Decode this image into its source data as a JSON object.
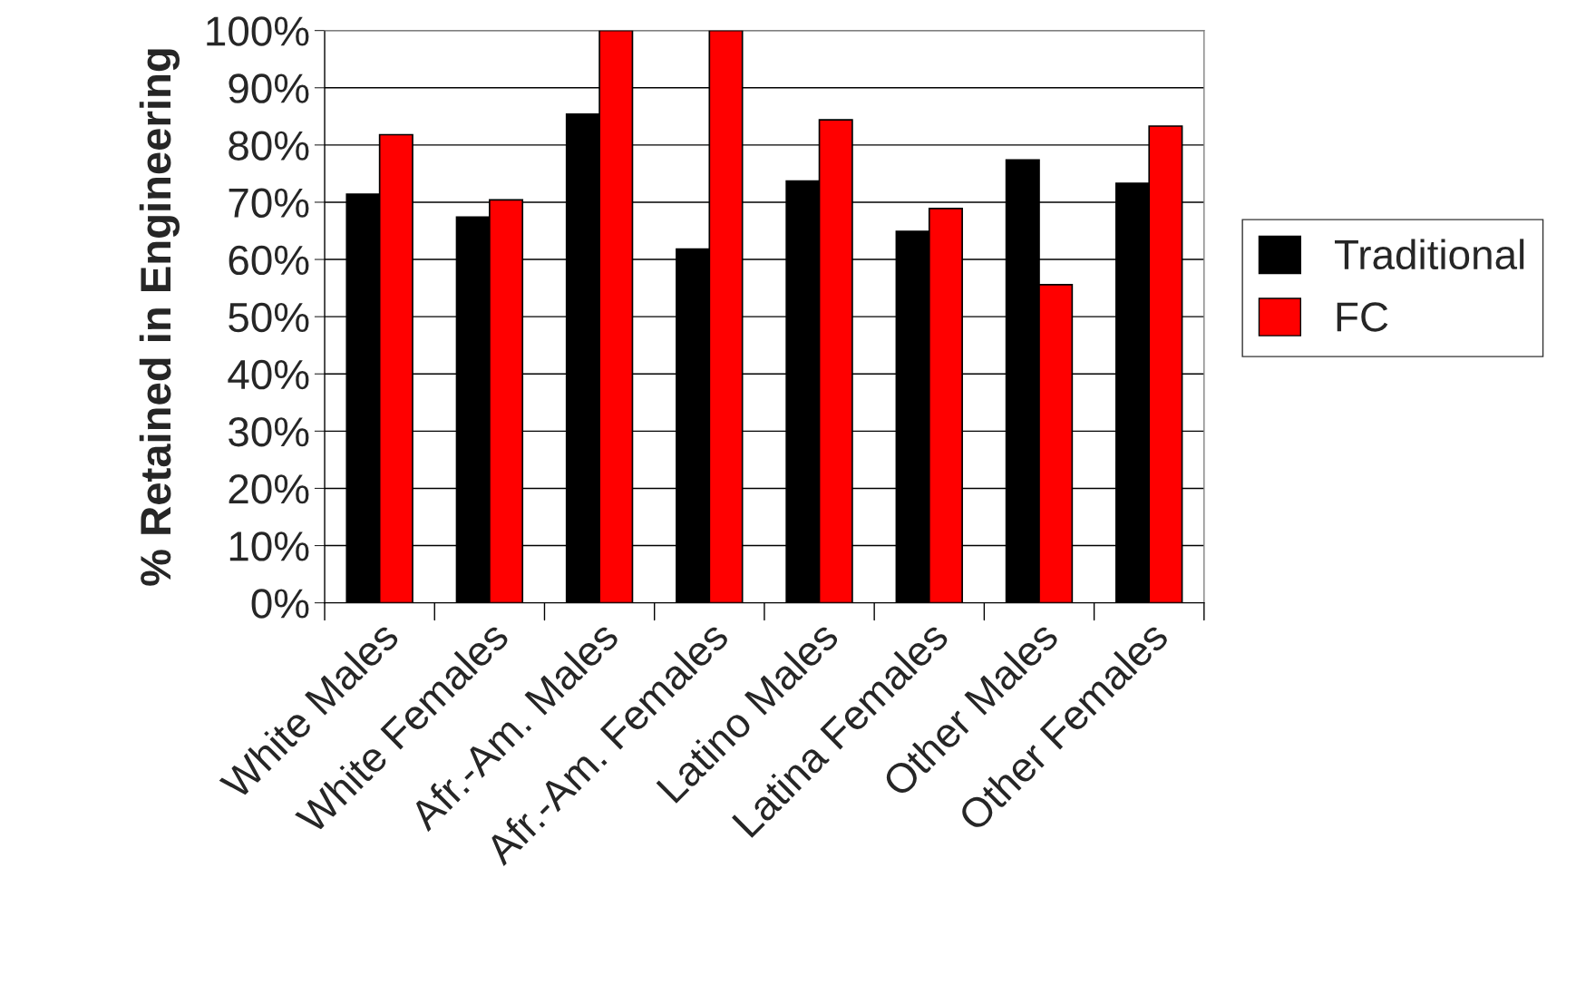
{
  "chart_data": {
    "type": "bar",
    "ylabel": "% Retained in Engineering",
    "categories": [
      "White Males",
      "White Females",
      "Afr.-Am. Males",
      "Afr.-Am. Females",
      "Latino Males",
      "Latina Females",
      "Other Males",
      "Other Females"
    ],
    "series": [
      {
        "name": "Traditional",
        "color": "#000000",
        "values": [
          71.4,
          67.4,
          85.4,
          61.8,
          73.7,
          64.9,
          77.4,
          73.3
        ]
      },
      {
        "name": "FC",
        "color": "#ff0000",
        "values": [
          81.8,
          70.4,
          100,
          100,
          84.4,
          68.9,
          55.6,
          83.3
        ]
      }
    ],
    "ylim": [
      0,
      100
    ],
    "yticks": [
      {
        "value": 0,
        "label": "0%"
      },
      {
        "value": 10,
        "label": "10%"
      },
      {
        "value": 20,
        "label": "20%"
      },
      {
        "value": 30,
        "label": "30%"
      },
      {
        "value": 40,
        "label": "40%"
      },
      {
        "value": 50,
        "label": "50%"
      },
      {
        "value": 60,
        "label": "60%"
      },
      {
        "value": 70,
        "label": "70%"
      },
      {
        "value": 80,
        "label": "80%"
      },
      {
        "value": 90,
        "label": "90%"
      },
      {
        "value": 100,
        "label": "100%"
      }
    ],
    "grid": "y",
    "legend": "right"
  }
}
